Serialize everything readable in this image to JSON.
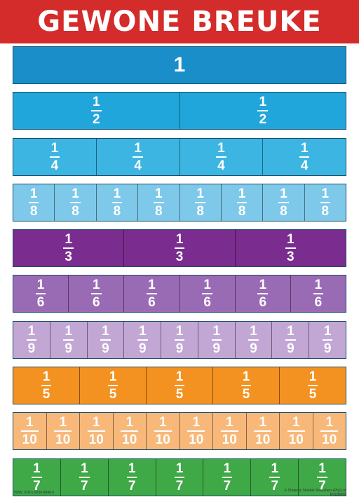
{
  "title": "GEWONE BREUKE",
  "rows": [
    {
      "name": "whole",
      "color": "#1a8ec9",
      "cells": [
        {
          "num": "1",
          "den": ""
        }
      ]
    },
    {
      "name": "halves",
      "color": "#21a6dc",
      "cells": [
        {
          "num": "1",
          "den": "2"
        },
        {
          "num": "1",
          "den": "2"
        }
      ]
    },
    {
      "name": "quarters",
      "color": "#3db5e2",
      "cells": [
        {
          "num": "1",
          "den": "4"
        },
        {
          "num": "1",
          "den": "4"
        },
        {
          "num": "1",
          "den": "4"
        },
        {
          "num": "1",
          "den": "4"
        }
      ]
    },
    {
      "name": "eighths",
      "color": "#7ec8ea",
      "cells": [
        {
          "num": "1",
          "den": "8"
        },
        {
          "num": "1",
          "den": "8"
        },
        {
          "num": "1",
          "den": "8"
        },
        {
          "num": "1",
          "den": "8"
        },
        {
          "num": "1",
          "den": "8"
        },
        {
          "num": "1",
          "den": "8"
        },
        {
          "num": "1",
          "den": "8"
        },
        {
          "num": "1",
          "den": "8"
        }
      ]
    },
    {
      "name": "thirds",
      "color": "#7b2d8f",
      "cells": [
        {
          "num": "1",
          "den": "3"
        },
        {
          "num": "1",
          "den": "3"
        },
        {
          "num": "1",
          "den": "3"
        }
      ]
    },
    {
      "name": "sixths",
      "color": "#9a6bb5",
      "cells": [
        {
          "num": "1",
          "den": "6"
        },
        {
          "num": "1",
          "den": "6"
        },
        {
          "num": "1",
          "den": "6"
        },
        {
          "num": "1",
          "den": "6"
        },
        {
          "num": "1",
          "den": "6"
        },
        {
          "num": "1",
          "den": "6"
        }
      ]
    },
    {
      "name": "ninths",
      "color": "#c2a6d4",
      "cells": [
        {
          "num": "1",
          "den": "9"
        },
        {
          "num": "1",
          "den": "9"
        },
        {
          "num": "1",
          "den": "9"
        },
        {
          "num": "1",
          "den": "9"
        },
        {
          "num": "1",
          "den": "9"
        },
        {
          "num": "1",
          "den": "9"
        },
        {
          "num": "1",
          "den": "9"
        },
        {
          "num": "1",
          "den": "9"
        },
        {
          "num": "1",
          "den": "9"
        }
      ]
    },
    {
      "name": "fifths",
      "color": "#f39220",
      "cells": [
        {
          "num": "1",
          "den": "5"
        },
        {
          "num": "1",
          "den": "5"
        },
        {
          "num": "1",
          "den": "5"
        },
        {
          "num": "1",
          "den": "5"
        },
        {
          "num": "1",
          "den": "5"
        }
      ]
    },
    {
      "name": "tenths",
      "color": "#f7b87a",
      "cells": [
        {
          "num": "1",
          "den": "10"
        },
        {
          "num": "1",
          "den": "10"
        },
        {
          "num": "1",
          "den": "10"
        },
        {
          "num": "1",
          "den": "10"
        },
        {
          "num": "1",
          "den": "10"
        },
        {
          "num": "1",
          "den": "10"
        },
        {
          "num": "1",
          "den": "10"
        },
        {
          "num": "1",
          "den": "10"
        },
        {
          "num": "1",
          "den": "10"
        },
        {
          "num": "1",
          "den": "10"
        }
      ]
    },
    {
      "name": "sevenths",
      "color": "#3fa847",
      "cells": [
        {
          "num": "1",
          "den": "7"
        },
        {
          "num": "1",
          "den": "7"
        },
        {
          "num": "1",
          "den": "7"
        },
        {
          "num": "1",
          "den": "7"
        },
        {
          "num": "1",
          "den": "7"
        },
        {
          "num": "1",
          "den": "7"
        },
        {
          "num": "1",
          "den": "7"
        }
      ]
    }
  ],
  "footer": {
    "isbn": "ISBN: 978-1-9230-8848-0",
    "publisher": "© Shuter & Shooter Publishers (Pty) Ltd",
    "code": "R0188458"
  }
}
